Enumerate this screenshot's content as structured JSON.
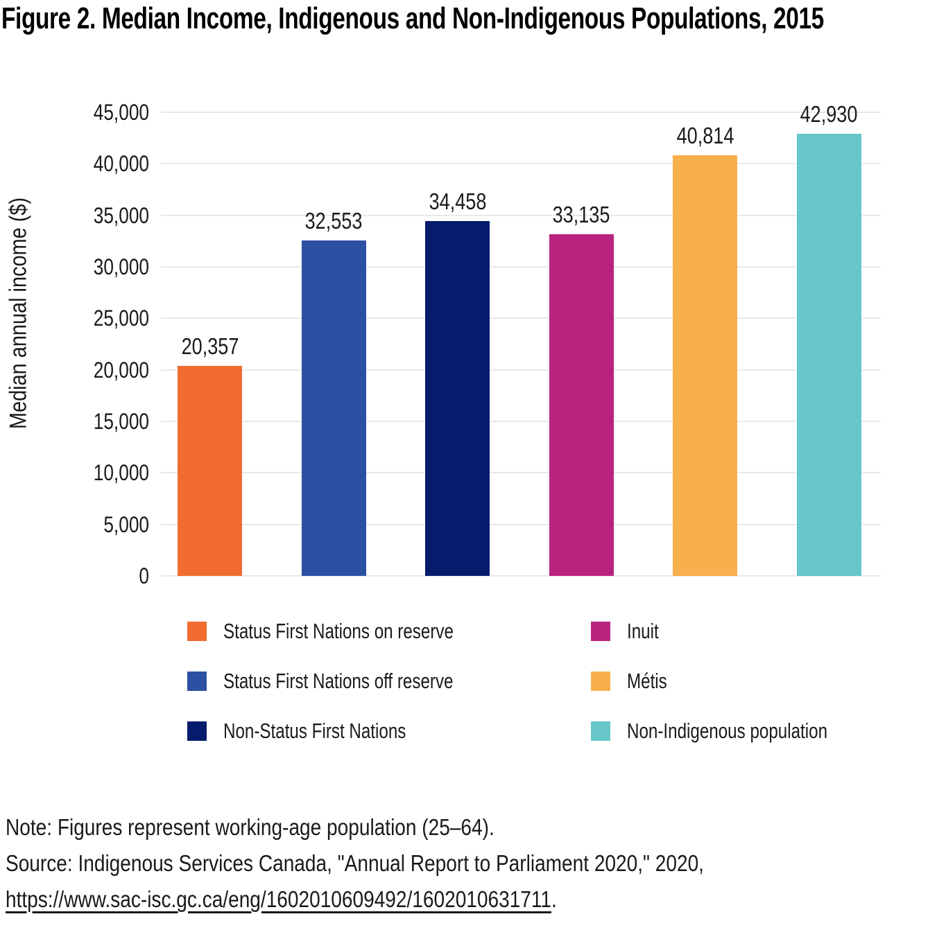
{
  "chart_data": {
    "type": "bar",
    "title": "Figure 2. Median Income, Indigenous and Non-Indigenous Populations, 2015",
    "ylabel": "Median annual income ($)",
    "xlabel": "",
    "ylim": [
      0,
      45000
    ],
    "grid": true,
    "legend_position": "bottom",
    "ytick_values": [
      0,
      5000,
      10000,
      15000,
      20000,
      25000,
      30000,
      35000,
      40000,
      45000
    ],
    "ytick_labels": [
      "0",
      "5,000",
      "10,000",
      "15,000",
      "20,000",
      "25,000",
      "30,000",
      "35,000",
      "40,000",
      "45,000"
    ],
    "series": [
      {
        "name": "Status First Nations on reserve",
        "value": 20357,
        "label": "20,357",
        "color": "#F26B31"
      },
      {
        "name": "Status First Nations off reserve",
        "value": 32553,
        "label": "32,553",
        "color": "#2C51A3"
      },
      {
        "name": "Non-Status First Nations",
        "value": 34458,
        "label": "34,458",
        "color": "#051C6C"
      },
      {
        "name": "Inuit",
        "value": 33135,
        "label": "33,135",
        "color": "#B92380"
      },
      {
        "name": "Métis",
        "value": 40814,
        "label": "40,814",
        "color": "#FAAF4D"
      },
      {
        "name": "Non-Indigenous population",
        "value": 42930,
        "label": "42,930",
        "color": "#66C6C8"
      }
    ],
    "legend_columns": [
      [
        0,
        1,
        2
      ],
      [
        3,
        4,
        5
      ]
    ]
  },
  "notes": {
    "note": "Note: Figures represent working-age population (25–64).",
    "source": "Source: Indigenous Services Canada, \"Annual Report to Parliament 2020,\" 2020,",
    "link_text": "https://www.sac-isc.gc.ca/eng/1602010609492/1602010631711",
    "link_suffix": "."
  }
}
